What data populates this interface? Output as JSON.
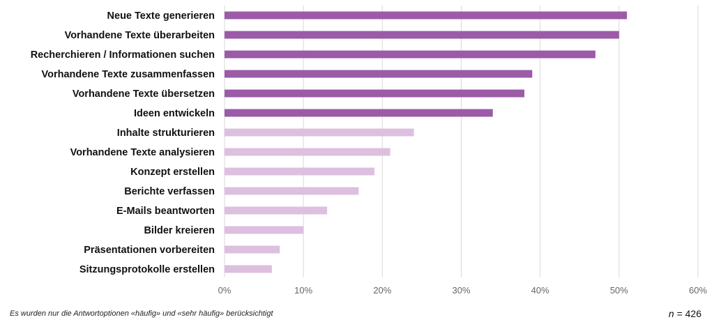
{
  "chart_data": {
    "type": "bar",
    "orientation": "horizontal",
    "categories": [
      "Neue Texte generieren",
      "Vorhandene Texte überarbeiten",
      "Recherchieren / Informationen suchen",
      "Vorhandene Texte zusammenfassen",
      "Vorhandene Texte übersetzen",
      "Ideen entwickeln",
      "Inhalte strukturieren",
      "Vorhandene Texte analysieren",
      "Konzept erstellen",
      "Berichte verfassen",
      "E-Mails beantworten",
      "Bilder kreieren",
      "Präsentationen vorbereiten",
      "Sitzungsprotokolle erstellen"
    ],
    "values": [
      51,
      50,
      47,
      39,
      38,
      34,
      24,
      21,
      19,
      17,
      13,
      10,
      7,
      6
    ],
    "highlight_count": 6,
    "colors": {
      "highlight": "#9b5ba7",
      "normal": "#ddbfe0"
    },
    "xlim": [
      0,
      60
    ],
    "xticks": [
      "0%",
      "10%",
      "20%",
      "30%",
      "40%",
      "50%",
      "60%"
    ],
    "grid": true,
    "title": "",
    "xlabel": "",
    "ylabel": ""
  },
  "footnote": "Es wurden nur die Antwortoptionen «häufig» und «sehr häufig» berücksichtigt",
  "sample": {
    "n_label": "n",
    "n_value": "= 426"
  }
}
